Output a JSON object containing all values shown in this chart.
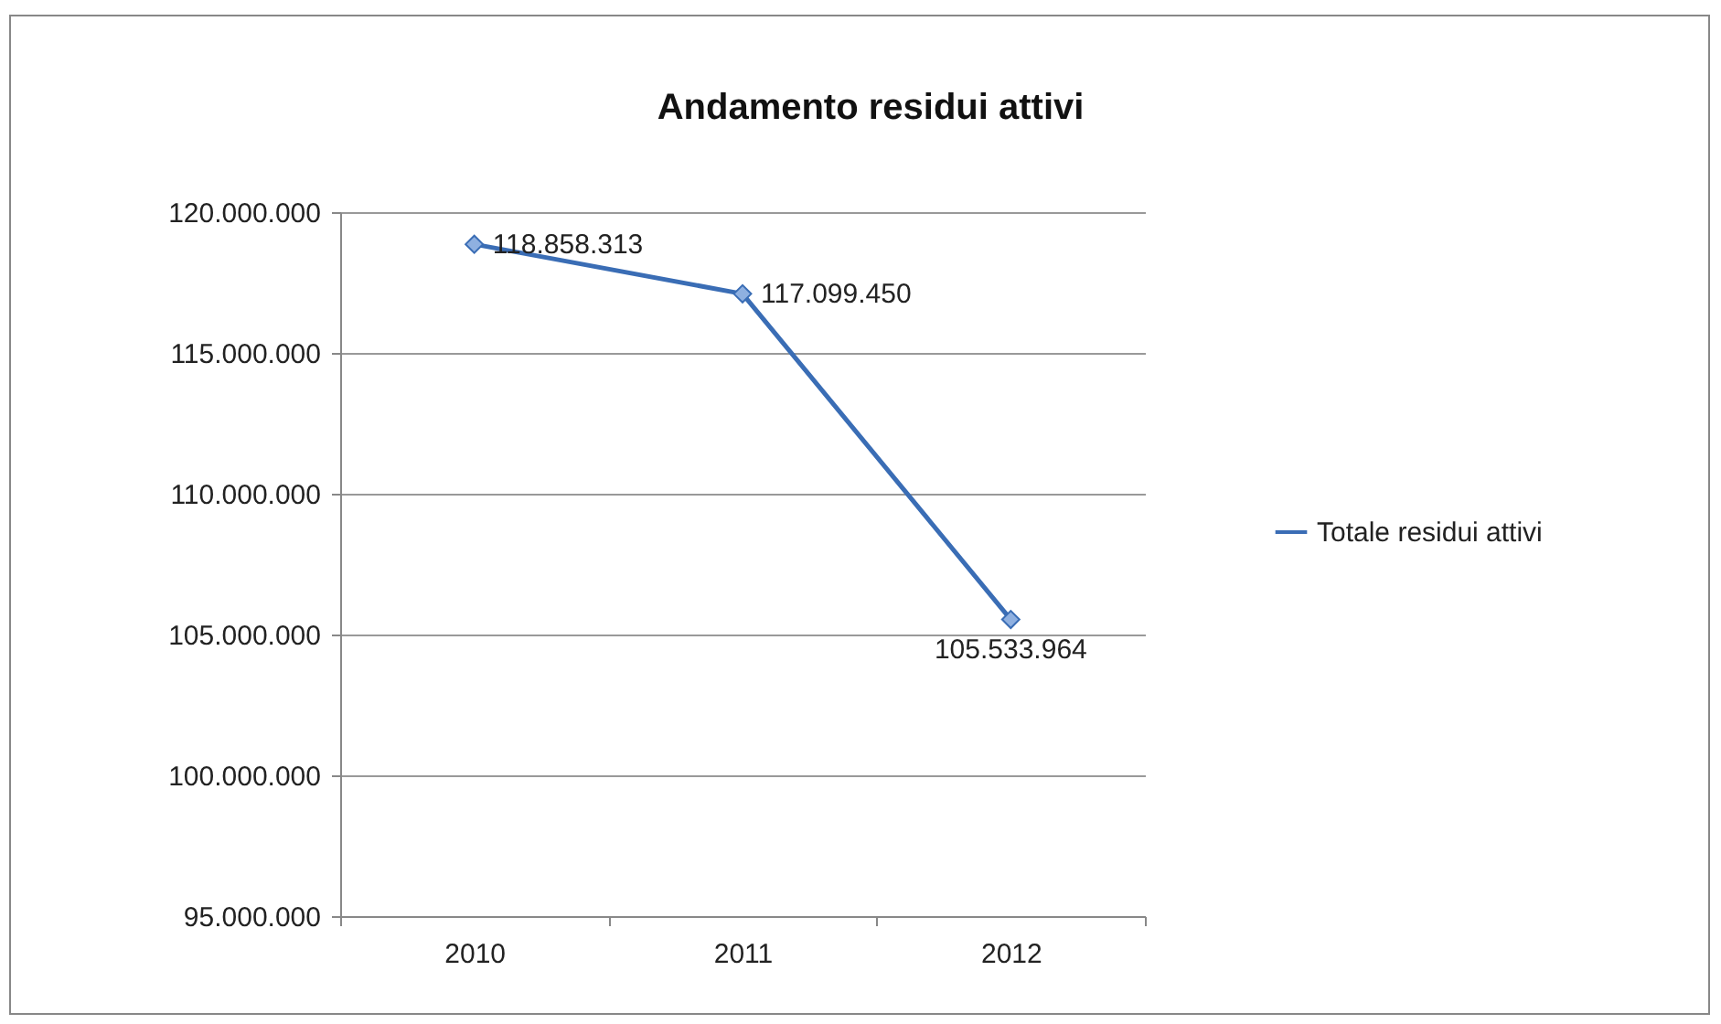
{
  "chart_data": {
    "type": "line",
    "title": "Andamento residui attivi",
    "categories": [
      "2010",
      "2011",
      "2012"
    ],
    "series": [
      {
        "name": "Totale residui attivi",
        "color": "#3a6db5",
        "values": [
          118858313,
          117099450,
          105533964
        ]
      }
    ],
    "value_labels": [
      "118.858.313",
      "117.099.450",
      "105.533.964"
    ],
    "ylim": [
      95000000,
      120000000
    ],
    "yticks": [
      {
        "value": 95000000,
        "label": "95.000.000"
      },
      {
        "value": 100000000,
        "label": "100.000.000"
      },
      {
        "value": 105000000,
        "label": "105.000.000"
      },
      {
        "value": 110000000,
        "label": "110.000.000"
      },
      {
        "value": 115000000,
        "label": "115.000.000"
      },
      {
        "value": 120000000,
        "label": "120.000.000"
      }
    ],
    "grid": "y",
    "legend": "right",
    "marker": "diamond",
    "line_style": "solid"
  }
}
